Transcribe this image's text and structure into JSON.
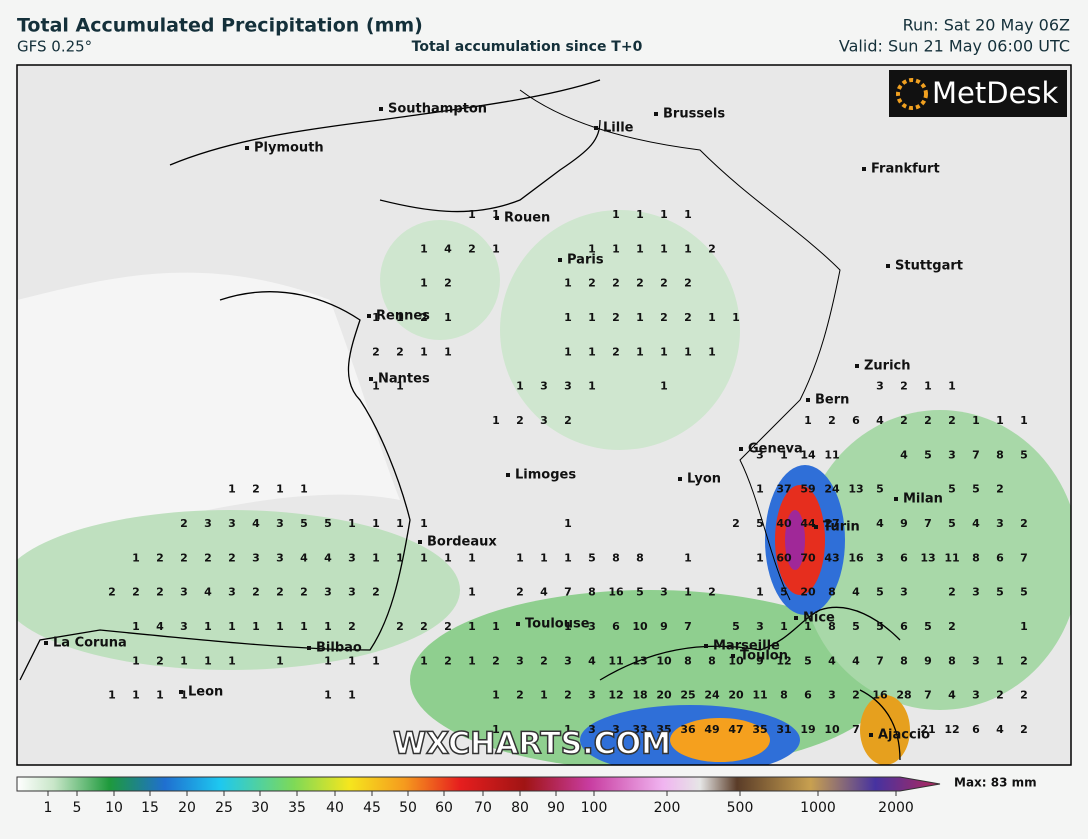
{
  "header": {
    "title": "Total Accumulated Precipitation (mm)",
    "model": "GFS 0.25°",
    "subtitle": "Total accumulation since T+0",
    "run": "Run: Sat 20 May 06Z",
    "valid": "Valid: Sun 21 May 06:00 UTC"
  },
  "logo": "MetDesk",
  "watermark": "WXCHARTS.COM",
  "cities": [
    "Southampton",
    "Plymouth",
    "Lille",
    "Brussels",
    "Frankfurt",
    "Rouen",
    "Paris",
    "Stuttgart",
    "Rennes",
    "Nantes",
    "Zurich",
    "Bern",
    "Geneva",
    "Limoges",
    "Lyon",
    "Milan",
    "Turin",
    "Bordeaux",
    "Toulouse",
    "Nice",
    "Marseille",
    "Toulon",
    "La Coruna",
    "Bilbao",
    "Leon",
    "Ajaccio"
  ],
  "grid": {
    "rows": [
      [
        null,
        null,
        null,
        null,
        null,
        null,
        null,
        null,
        null,
        null,
        null,
        null,
        null,
        null,
        null,
        1,
        1,
        null,
        null,
        null,
        null,
        1,
        1,
        1,
        1,
        null,
        null,
        null,
        null,
        null,
        null,
        null,
        null,
        null,
        null,
        null,
        null,
        null,
        null
      ],
      [
        null,
        null,
        null,
        null,
        null,
        null,
        null,
        null,
        null,
        null,
        null,
        null,
        null,
        1,
        4,
        2,
        1,
        null,
        null,
        null,
        1,
        1,
        1,
        1,
        1,
        2,
        null,
        null,
        null,
        null,
        null,
        null,
        null,
        null,
        null,
        null,
        null,
        null,
        null
      ],
      [
        null,
        null,
        null,
        null,
        null,
        null,
        null,
        null,
        null,
        null,
        null,
        null,
        null,
        1,
        2,
        null,
        null,
        null,
        null,
        1,
        2,
        2,
        2,
        2,
        2,
        null,
        null,
        null,
        null,
        null,
        null,
        null,
        null,
        null,
        null,
        null,
        null,
        null,
        null
      ],
      [
        null,
        null,
        null,
        null,
        null,
        null,
        null,
        null,
        null,
        null,
        null,
        1,
        1,
        2,
        1,
        null,
        null,
        null,
        null,
        1,
        1,
        2,
        1,
        2,
        2,
        1,
        1,
        null,
        null,
        null,
        null,
        null,
        null,
        null,
        null,
        null,
        null,
        null,
        null
      ],
      [
        null,
        null,
        null,
        null,
        null,
        null,
        null,
        null,
        null,
        null,
        null,
        2,
        2,
        1,
        1,
        null,
        null,
        null,
        null,
        1,
        1,
        2,
        1,
        1,
        1,
        1,
        null,
        null,
        null,
        null,
        null,
        null,
        null,
        null,
        null,
        null,
        null,
        null,
        null
      ],
      [
        null,
        null,
        null,
        null,
        null,
        null,
        null,
        null,
        null,
        null,
        null,
        1,
        1,
        null,
        null,
        null,
        null,
        1,
        3,
        3,
        1,
        null,
        null,
        1,
        null,
        null,
        null,
        null,
        null,
        null,
        null,
        null,
        3,
        2,
        1,
        1,
        null,
        null,
        null
      ],
      [
        null,
        null,
        null,
        null,
        null,
        null,
        null,
        null,
        null,
        null,
        null,
        null,
        null,
        null,
        null,
        null,
        1,
        2,
        3,
        2,
        null,
        null,
        null,
        null,
        null,
        null,
        null,
        null,
        null,
        1,
        2,
        6,
        4,
        2,
        2,
        2,
        1,
        1,
        1
      ],
      [
        null,
        null,
        null,
        null,
        null,
        null,
        null,
        null,
        null,
        null,
        null,
        null,
        null,
        null,
        null,
        null,
        null,
        null,
        null,
        null,
        null,
        null,
        null,
        null,
        null,
        null,
        null,
        3,
        1,
        14,
        11,
        null,
        null,
        4,
        5,
        3,
        7,
        8,
        5
      ],
      [
        null,
        null,
        null,
        null,
        null,
        1,
        2,
        1,
        1,
        null,
        null,
        null,
        null,
        null,
        null,
        null,
        null,
        null,
        null,
        null,
        null,
        null,
        null,
        null,
        null,
        null,
        null,
        1,
        37,
        59,
        24,
        13,
        5,
        null,
        null,
        5,
        5,
        2,
        null
      ],
      [
        null,
        null,
        null,
        2,
        3,
        3,
        4,
        3,
        5,
        5,
        1,
        1,
        1,
        1,
        null,
        null,
        null,
        null,
        null,
        1,
        null,
        null,
        null,
        null,
        null,
        null,
        2,
        5,
        40,
        44,
        27,
        null,
        4,
        9,
        7,
        5,
        4,
        3,
        2
      ],
      [
        null,
        1,
        2,
        2,
        2,
        2,
        3,
        3,
        4,
        4,
        3,
        1,
        1,
        1,
        1,
        1,
        null,
        1,
        1,
        1,
        5,
        8,
        8,
        null,
        1,
        null,
        null,
        1,
        60,
        70,
        43,
        16,
        3,
        6,
        13,
        11,
        8,
        6,
        7
      ],
      [
        2,
        2,
        2,
        3,
        4,
        3,
        2,
        2,
        2,
        3,
        3,
        2,
        null,
        null,
        null,
        1,
        null,
        2,
        4,
        7,
        8,
        16,
        5,
        3,
        1,
        2,
        null,
        1,
        5,
        20,
        8,
        4,
        5,
        3,
        null,
        2,
        3,
        5,
        5
      ],
      [
        null,
        1,
        4,
        3,
        1,
        1,
        1,
        1,
        1,
        1,
        2,
        null,
        2,
        2,
        2,
        1,
        1,
        null,
        null,
        1,
        3,
        6,
        10,
        9,
        7,
        null,
        5,
        3,
        1,
        1,
        8,
        5,
        5,
        6,
        5,
        2,
        null,
        null,
        1
      ],
      [
        null,
        1,
        2,
        1,
        1,
        1,
        null,
        1,
        null,
        1,
        1,
        1,
        null,
        1,
        2,
        1,
        2,
        3,
        2,
        3,
        4,
        11,
        13,
        10,
        8,
        8,
        10,
        9,
        12,
        5,
        4,
        4,
        7,
        8,
        9,
        8,
        3,
        1,
        2
      ],
      [
        1,
        1,
        1,
        1,
        null,
        null,
        null,
        null,
        null,
        1,
        1,
        null,
        null,
        null,
        null,
        null,
        1,
        2,
        1,
        2,
        3,
        12,
        18,
        20,
        25,
        24,
        20,
        11,
        8,
        6,
        3,
        2,
        16,
        28,
        7,
        4,
        3,
        2,
        2
      ],
      [
        null,
        null,
        null,
        null,
        null,
        null,
        null,
        null,
        null,
        null,
        null,
        null,
        null,
        null,
        null,
        null,
        1,
        null,
        null,
        1,
        3,
        3,
        33,
        35,
        36,
        49,
        47,
        35,
        31,
        19,
        10,
        7,
        null,
        null,
        21,
        12,
        6,
        4,
        2
      ]
    ]
  },
  "legend": {
    "ticks": [
      1,
      5,
      10,
      15,
      20,
      25,
      30,
      35,
      40,
      45,
      50,
      60,
      70,
      80,
      90,
      100,
      200,
      500,
      1000,
      2000
    ],
    "max": "Max: 83 mm"
  }
}
